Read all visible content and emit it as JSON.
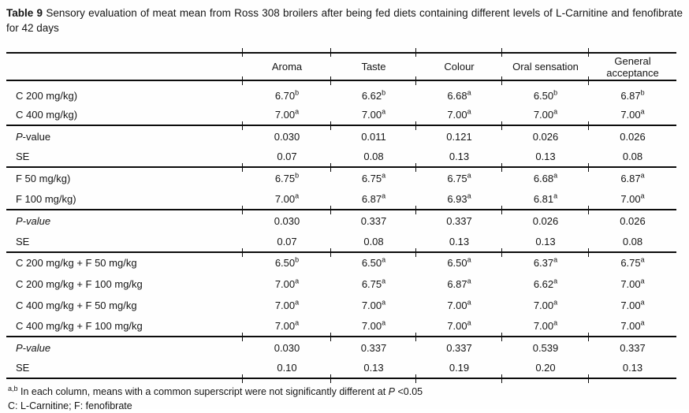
{
  "caption": {
    "bold": "Table 9",
    "rest": " Sensory evaluation of meat mean from Ross 308 broilers after being fed diets containing different levels of L-Carnitine and fenofibrate for 42 days"
  },
  "table": {
    "columns": [
      "",
      "Aroma",
      "Taste",
      "Colour",
      "Oral sensation",
      "General acceptance"
    ],
    "rows": [
      {
        "label_italic": "",
        "label": "C 200 mg/kg)",
        "rule_below": false,
        "cells": [
          {
            "v": "6.70",
            "s": "b"
          },
          {
            "v": "6.62",
            "s": "b"
          },
          {
            "v": "6.68",
            "s": "a"
          },
          {
            "v": "6.50",
            "s": "b"
          },
          {
            "v": "6.87",
            "s": "b"
          }
        ]
      },
      {
        "label_italic": "",
        "label": "C 400 mg/kg)",
        "rule_below": true,
        "cells": [
          {
            "v": "7.00",
            "s": "a"
          },
          {
            "v": "7.00",
            "s": "a"
          },
          {
            "v": "7.00",
            "s": "a"
          },
          {
            "v": "7.00",
            "s": "a"
          },
          {
            "v": "7.00",
            "s": "a"
          }
        ]
      },
      {
        "label_italic": "P",
        "label": "-value",
        "rule_below": false,
        "cells": [
          {
            "v": "0.030",
            "s": ""
          },
          {
            "v": "0.011",
            "s": ""
          },
          {
            "v": "0.121",
            "s": ""
          },
          {
            "v": "0.026",
            "s": ""
          },
          {
            "v": "0.026",
            "s": ""
          }
        ]
      },
      {
        "label_italic": "",
        "label": "SE",
        "rule_below": true,
        "cells": [
          {
            "v": "0.07",
            "s": ""
          },
          {
            "v": "0.08",
            "s": ""
          },
          {
            "v": "0.13",
            "s": ""
          },
          {
            "v": "0.13",
            "s": ""
          },
          {
            "v": "0.08",
            "s": ""
          }
        ]
      },
      {
        "label_italic": "",
        "label": "F 50 mg/kg)",
        "rule_below": false,
        "cells": [
          {
            "v": "6.75",
            "s": "b"
          },
          {
            "v": "6.75",
            "s": "a"
          },
          {
            "v": "6.75",
            "s": "a"
          },
          {
            "v": "6.68",
            "s": "a"
          },
          {
            "v": "6.87",
            "s": "a"
          }
        ]
      },
      {
        "label_italic": "",
        "label": "F 100 mg/kg)",
        "rule_below": true,
        "cells": [
          {
            "v": "7.00",
            "s": "a"
          },
          {
            "v": "6.87",
            "s": "a"
          },
          {
            "v": "6.93",
            "s": "a"
          },
          {
            "v": "6.81",
            "s": "a"
          },
          {
            "v": "7.00",
            "s": "a"
          }
        ]
      },
      {
        "label_italic": "P-value",
        "label": "",
        "rule_below": false,
        "cells": [
          {
            "v": "0.030",
            "s": ""
          },
          {
            "v": "0.337",
            "s": ""
          },
          {
            "v": "0.337",
            "s": ""
          },
          {
            "v": "0.026",
            "s": ""
          },
          {
            "v": "0.026",
            "s": ""
          }
        ]
      },
      {
        "label_italic": "",
        "label": "SE",
        "rule_below": true,
        "cells": [
          {
            "v": "0.07",
            "s": ""
          },
          {
            "v": "0.08",
            "s": ""
          },
          {
            "v": "0.13",
            "s": ""
          },
          {
            "v": "0.13",
            "s": ""
          },
          {
            "v": "0.08",
            "s": ""
          }
        ]
      },
      {
        "label_italic": "",
        "label": "C 200 mg/kg + F 50 mg/kg",
        "rule_below": false,
        "cells": [
          {
            "v": "6.50",
            "s": "b"
          },
          {
            "v": "6.50",
            "s": "a"
          },
          {
            "v": "6.50",
            "s": "a"
          },
          {
            "v": "6.37",
            "s": "a"
          },
          {
            "v": "6.75",
            "s": "a"
          }
        ]
      },
      {
        "label_italic": "",
        "label": "C 200 mg/kg + F 100 mg/kg",
        "rule_below": false,
        "cells": [
          {
            "v": "7.00",
            "s": "a"
          },
          {
            "v": "6.75",
            "s": "a"
          },
          {
            "v": "6.87",
            "s": "a"
          },
          {
            "v": "6.62",
            "s": "a"
          },
          {
            "v": "7.00",
            "s": "a"
          }
        ]
      },
      {
        "label_italic": "",
        "label": "C 400 mg/kg + F 50 mg/kg",
        "rule_below": false,
        "cells": [
          {
            "v": "7.00",
            "s": "a"
          },
          {
            "v": "7.00",
            "s": "a"
          },
          {
            "v": "7.00",
            "s": "a"
          },
          {
            "v": "7.00",
            "s": "a"
          },
          {
            "v": "7.00",
            "s": "a"
          }
        ]
      },
      {
        "label_italic": "",
        "label": "C 400 mg/kg + F 100 mg/kg",
        "rule_below": true,
        "cells": [
          {
            "v": "7.00",
            "s": "a"
          },
          {
            "v": "7.00",
            "s": "a"
          },
          {
            "v": "7.00",
            "s": "a"
          },
          {
            "v": "7.00",
            "s": "a"
          },
          {
            "v": "7.00",
            "s": "a"
          }
        ]
      },
      {
        "label_italic": "P-value",
        "label": "",
        "rule_below": false,
        "cells": [
          {
            "v": "0.030",
            "s": ""
          },
          {
            "v": "0.337",
            "s": ""
          },
          {
            "v": "0.337",
            "s": ""
          },
          {
            "v": "0.539",
            "s": ""
          },
          {
            "v": "0.337",
            "s": ""
          }
        ]
      },
      {
        "label_italic": "",
        "label": "SE",
        "rule_below": true,
        "cells": [
          {
            "v": "0.10",
            "s": ""
          },
          {
            "v": "0.13",
            "s": ""
          },
          {
            "v": "0.19",
            "s": ""
          },
          {
            "v": "0.20",
            "s": ""
          },
          {
            "v": "0.13",
            "s": ""
          }
        ]
      }
    ]
  },
  "footnotes": {
    "sup": "a,b",
    "line1_pre": " In each column, means with a common superscript were not significantly different at ",
    "line1_italic": "P",
    "line1_post": " <0.05",
    "line2": "C: L-Carnitine; F: fenofibrate"
  }
}
